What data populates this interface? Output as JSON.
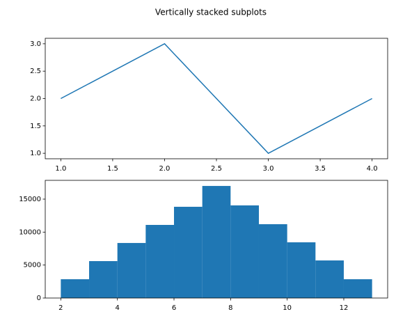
{
  "title": "Vertically stacked subplots",
  "chart_data": [
    {
      "type": "line",
      "color": "#1f77b4",
      "x": [
        1,
        2,
        3,
        4
      ],
      "y": [
        2,
        3,
        1,
        2
      ],
      "xlim": [
        0.85,
        4.15
      ],
      "ylim": [
        0.9,
        3.1
      ],
      "xticks": [
        {
          "value": 1,
          "label": "1.0"
        },
        {
          "value": 1.5,
          "label": "1.5"
        },
        {
          "value": 2,
          "label": "2.0"
        },
        {
          "value": 2.5,
          "label": "2.5"
        },
        {
          "value": 3,
          "label": "3.0"
        },
        {
          "value": 3.5,
          "label": "3.5"
        },
        {
          "value": 4,
          "label": "4.0"
        }
      ],
      "yticks": [
        {
          "value": 1,
          "label": "1.0"
        },
        {
          "value": 1.5,
          "label": "1.5"
        },
        {
          "value": 2,
          "label": "2.0"
        },
        {
          "value": 2.5,
          "label": "2.5"
        },
        {
          "value": 3,
          "label": "3.0"
        }
      ]
    },
    {
      "type": "histogram",
      "color": "#1f77b4",
      "bins": [
        2,
        3,
        4,
        5,
        6,
        7,
        8,
        9,
        10,
        11,
        12,
        13
      ],
      "values": [
        2850,
        5600,
        8350,
        11090,
        13840,
        17000,
        14050,
        11200,
        8450,
        5700,
        2850
      ],
      "xlim": [
        1.45,
        13.55
      ],
      "ylim": [
        0,
        17850
      ],
      "xticks": [
        2,
        4,
        6,
        8,
        10,
        12
      ],
      "yticks": [
        0,
        5000,
        10000,
        15000
      ]
    }
  ]
}
